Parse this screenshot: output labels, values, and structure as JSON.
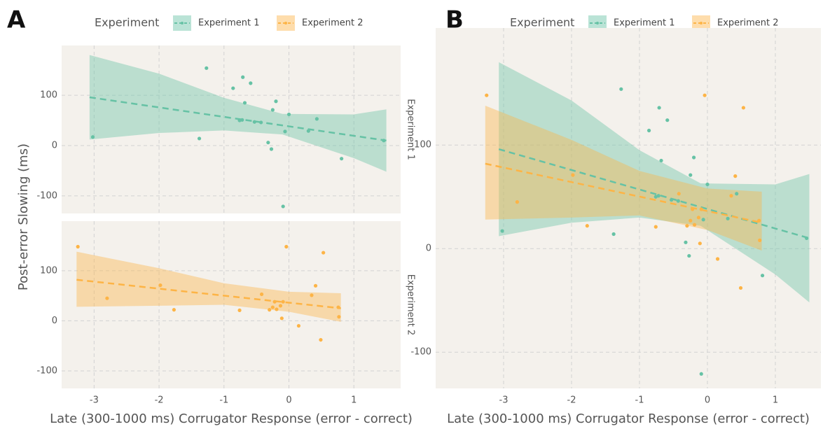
{
  "chart_data": [
    {
      "type": "scatter",
      "panel_label": "A",
      "legend_title": "Experiment",
      "x_label": "Late (300-1000 ms) Corrugator Response (error - correct)",
      "y_label": "Post-error Slowing (ms)",
      "facets": [
        "Experiment 1",
        "Experiment 2"
      ],
      "xlim": [
        -3.5,
        1.72
      ],
      "xticks": [
        -3,
        -2,
        -1,
        0,
        1
      ],
      "ylim": [
        -135,
        199
      ],
      "yticks": [
        -100,
        0,
        100
      ],
      "grid": true,
      "series": [
        {
          "name": "Experiment 1",
          "color": "#66c2a5",
          "x": [
            -3.02,
            -1.27,
            -1.38,
            -0.86,
            -0.71,
            -0.59,
            -0.68,
            -0.72,
            -0.76,
            -0.53,
            -0.43,
            -0.25,
            -0.2,
            -0.32,
            -0.27,
            -0.09,
            -0.06,
            0.0,
            0.3,
            0.43,
            0.81,
            1.46
          ],
          "values": [
            17,
            154,
            14,
            114,
            136,
            124,
            85,
            51,
            50,
            47,
            46,
            71,
            88,
            6,
            -7,
            -121,
            28,
            62,
            29,
            53,
            -26,
            10
          ],
          "fit_x": [
            -3.07,
            1.5
          ],
          "fit_values": [
            96,
            10
          ],
          "band_x": [
            -3.07,
            -2,
            -1,
            -0.1,
            1,
            1.5
          ],
          "band_upper": [
            180,
            143,
            95,
            63,
            62,
            72
          ],
          "band_lower": [
            12,
            25,
            30,
            22,
            -25,
            -52
          ]
        },
        {
          "name": "Experiment 2",
          "color": "#fdb446",
          "x": [
            -3.25,
            -2.8,
            -1.98,
            -1.77,
            -0.76,
            -0.3,
            -0.25,
            -0.22,
            -0.19,
            -0.13,
            -0.11,
            -0.09,
            -0.04,
            0.15,
            0.35,
            0.41,
            0.53,
            0.49,
            0.76,
            0.77,
            -0.42
          ],
          "values": [
            148,
            45,
            71,
            22,
            21,
            22,
            27,
            38,
            23,
            30,
            5,
            38,
            148,
            -10,
            51,
            70,
            136,
            -38,
            27,
            8,
            53
          ],
          "fit_x": [
            -3.27,
            0.8
          ],
          "fit_values": [
            82,
            25
          ],
          "band_x": [
            -3.27,
            -2,
            -1,
            0,
            0.8
          ],
          "band_upper": [
            138,
            105,
            75,
            58,
            55
          ],
          "band_lower": [
            28,
            30,
            32,
            18,
            -2
          ]
        }
      ]
    },
    {
      "type": "scatter",
      "panel_label": "B",
      "legend_title": "Experiment",
      "x_label": "Late (300-1000 ms) Corrugator Response (error - correct)",
      "xlim": [
        -4.0,
        1.67
      ],
      "xticks": [
        -3,
        -2,
        -1,
        0,
        1
      ],
      "ylim": [
        -135,
        213
      ],
      "yticks": [
        -100,
        0,
        100
      ],
      "grid": true,
      "series": [
        {
          "name": "Experiment 1",
          "color": "#66c2a5",
          "x": [
            -3.02,
            -1.27,
            -1.38,
            -0.86,
            -0.71,
            -0.59,
            -0.68,
            -0.72,
            -0.76,
            -0.53,
            -0.43,
            -0.25,
            -0.2,
            -0.32,
            -0.27,
            -0.09,
            -0.06,
            0.0,
            0.3,
            0.43,
            0.81,
            1.46
          ],
          "values": [
            17,
            154,
            14,
            114,
            136,
            124,
            85,
            51,
            50,
            47,
            46,
            71,
            88,
            6,
            -7,
            -121,
            28,
            62,
            29,
            53,
            -26,
            10
          ],
          "fit_x": [
            -3.07,
            1.5
          ],
          "fit_values": [
            96,
            10
          ],
          "band_x": [
            -3.07,
            -2,
            -1,
            -0.1,
            1,
            1.5
          ],
          "band_upper": [
            180,
            143,
            95,
            63,
            62,
            72
          ],
          "band_lower": [
            12,
            25,
            30,
            22,
            -25,
            -52
          ]
        },
        {
          "name": "Experiment 2",
          "color": "#fdb446",
          "x": [
            -3.25,
            -2.8,
            -1.98,
            -1.77,
            -0.76,
            -0.3,
            -0.25,
            -0.22,
            -0.19,
            -0.13,
            -0.11,
            -0.09,
            -0.04,
            0.15,
            0.35,
            0.41,
            0.53,
            0.49,
            0.76,
            0.77,
            -0.42
          ],
          "values": [
            148,
            45,
            71,
            22,
            21,
            22,
            27,
            38,
            23,
            30,
            5,
            38,
            148,
            -10,
            51,
            70,
            136,
            -38,
            27,
            8,
            53
          ],
          "fit_x": [
            -3.27,
            0.8
          ],
          "fit_values": [
            82,
            25
          ],
          "band_x": [
            -3.27,
            -2,
            -1,
            0,
            0.8
          ],
          "band_upper": [
            138,
            105,
            75,
            58,
            55
          ],
          "band_lower": [
            28,
            30,
            32,
            18,
            -2
          ]
        }
      ]
    }
  ]
}
